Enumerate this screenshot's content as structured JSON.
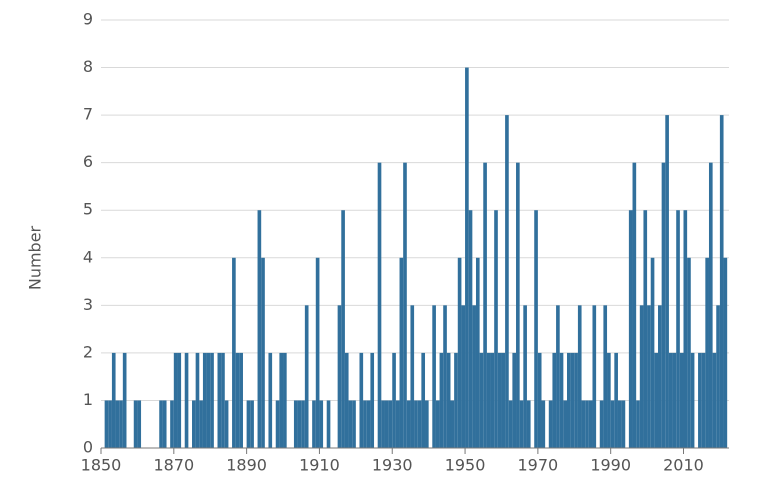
{
  "chart_data": {
    "type": "bar",
    "y_label": "Number",
    "color": "#31709c",
    "grid": true,
    "x": [
      1851,
      1852,
      1853,
      1854,
      1855,
      1856,
      1857,
      1858,
      1859,
      1860,
      1861,
      1862,
      1863,
      1864,
      1865,
      1866,
      1867,
      1868,
      1869,
      1870,
      1871,
      1872,
      1873,
      1874,
      1875,
      1876,
      1877,
      1878,
      1879,
      1880,
      1881,
      1882,
      1883,
      1884,
      1885,
      1886,
      1887,
      1888,
      1889,
      1890,
      1891,
      1892,
      1893,
      1894,
      1895,
      1896,
      1897,
      1898,
      1899,
      1900,
      1901,
      1902,
      1903,
      1904,
      1905,
      1906,
      1907,
      1908,
      1909,
      1910,
      1911,
      1912,
      1913,
      1914,
      1915,
      1916,
      1917,
      1918,
      1919,
      1920,
      1921,
      1922,
      1923,
      1924,
      1925,
      1926,
      1927,
      1928,
      1929,
      1930,
      1931,
      1932,
      1933,
      1934,
      1935,
      1936,
      1937,
      1938,
      1939,
      1940,
      1941,
      1942,
      1943,
      1944,
      1945,
      1946,
      1947,
      1948,
      1949,
      1950,
      1951,
      1952,
      1953,
      1954,
      1955,
      1956,
      1957,
      1958,
      1959,
      1960,
      1961,
      1962,
      1963,
      1964,
      1965,
      1966,
      1967,
      1968,
      1969,
      1970,
      1971,
      1972,
      1973,
      1974,
      1975,
      1976,
      1977,
      1978,
      1979,
      1980,
      1981,
      1982,
      1983,
      1984,
      1985,
      1986,
      1987,
      1988,
      1989,
      1990,
      1991,
      1992,
      1993,
      1994,
      1995,
      1996,
      1997,
      1998,
      1999,
      2000,
      2001,
      2002,
      2003,
      2004,
      2005,
      2006,
      2007,
      2008,
      2009,
      2010,
      2011,
      2012,
      2013,
      2014,
      2015,
      2016,
      2017,
      2018,
      2019,
      2020,
      2021
    ],
    "values": [
      1,
      1,
      2,
      1,
      1,
      2,
      0,
      0,
      1,
      1,
      0,
      0,
      0,
      0,
      0,
      1,
      1,
      0,
      1,
      2,
      2,
      0,
      2,
      0,
      1,
      2,
      1,
      2,
      2,
      2,
      0,
      2,
      2,
      1,
      0,
      4,
      2,
      2,
      0,
      1,
      1,
      0,
      5,
      4,
      0,
      2,
      0,
      1,
      2,
      2,
      0,
      0,
      1,
      1,
      1,
      3,
      0,
      1,
      4,
      1,
      0,
      1,
      0,
      0,
      3,
      5,
      2,
      1,
      1,
      0,
      2,
      1,
      1,
      2,
      0,
      6,
      1,
      1,
      1,
      2,
      1,
      4,
      6,
      1,
      3,
      1,
      1,
      2,
      1,
      0,
      3,
      1,
      2,
      3,
      2,
      1,
      2,
      4,
      3,
      8,
      5,
      3,
      4,
      2,
      6,
      2,
      2,
      5,
      2,
      2,
      7,
      1,
      2,
      6,
      1,
      3,
      1,
      0,
      5,
      2,
      1,
      0,
      1,
      2,
      3,
      2,
      1,
      2,
      2,
      2,
      3,
      1,
      1,
      1,
      3,
      0,
      1,
      3,
      2,
      1,
      2,
      1,
      1,
      0,
      5,
      6,
      1,
      3,
      5,
      3,
      4,
      2,
      3,
      6,
      7,
      2,
      2,
      5,
      2,
      5,
      4,
      2,
      0,
      2,
      2,
      4,
      6,
      2,
      3,
      7,
      4
    ],
    "xlim": [
      1850,
      2022.5
    ],
    "xticks": [
      1850,
      1870,
      1890,
      1910,
      1930,
      1950,
      1970,
      1990,
      2010
    ],
    "ylim": [
      0,
      9
    ],
    "yticks": [
      0,
      1,
      2,
      3,
      4,
      5,
      6,
      7,
      8,
      9
    ]
  }
}
